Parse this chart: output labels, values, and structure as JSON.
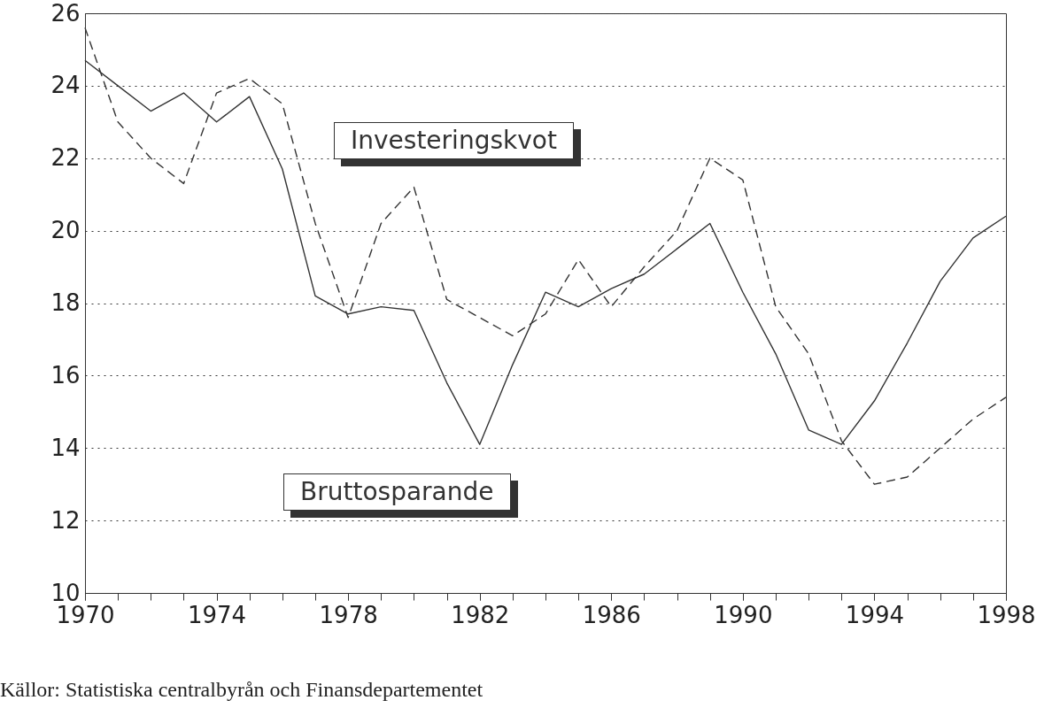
{
  "chart_data": {
    "type": "line",
    "x": [
      1970,
      1971,
      1972,
      1973,
      1974,
      1975,
      1976,
      1977,
      1978,
      1979,
      1980,
      1981,
      1982,
      1983,
      1984,
      1985,
      1986,
      1987,
      1988,
      1989,
      1990,
      1991,
      1992,
      1993,
      1994,
      1995,
      1996,
      1997,
      1998
    ],
    "series": [
      {
        "name": "Bruttosparande",
        "color": "#333333",
        "line_style": "solid",
        "values": [
          24.7,
          24.0,
          23.3,
          23.8,
          23.0,
          23.7,
          21.7,
          18.2,
          17.7,
          17.9,
          17.8,
          15.8,
          14.1,
          16.3,
          18.3,
          17.9,
          18.4,
          18.8,
          19.5,
          20.2,
          18.3,
          16.6,
          14.5,
          14.1,
          15.3,
          16.9,
          18.6,
          19.8,
          20.4
        ]
      },
      {
        "name": "Investeringskvot",
        "color": "#333333",
        "line_style": "dashed",
        "values": [
          25.6,
          23.0,
          22.0,
          21.3,
          23.8,
          24.2,
          23.5,
          20.2,
          17.6,
          20.2,
          21.2,
          18.1,
          17.6,
          17.1,
          17.7,
          19.2,
          17.9,
          19.0,
          20.0,
          22.0,
          21.4,
          17.9,
          16.6,
          14.2,
          13.0,
          13.2,
          14.0,
          14.8,
          15.4
        ]
      }
    ],
    "xlim": [
      1970,
      1998
    ],
    "xticks": [
      1970,
      {
        "value": 1971,
        "label": null
      },
      {
        "value": 1972,
        "label": null
      },
      {
        "value": 1973,
        "label": null
      },
      1974,
      {
        "value": 1975,
        "label": null
      },
      {
        "value": 1976,
        "label": null
      },
      {
        "value": 1977,
        "label": null
      },
      1978,
      {
        "value": 1979,
        "label": null
      },
      {
        "value": 1980,
        "label": null
      },
      {
        "value": 1981,
        "label": null
      },
      1982,
      {
        "value": 1983,
        "label": null
      },
      {
        "value": 1984,
        "label": null
      },
      {
        "value": 1985,
        "label": null
      },
      1986,
      {
        "value": 1987,
        "label": null
      },
      {
        "value": 1988,
        "label": null
      },
      {
        "value": 1989,
        "label": null
      },
      1990,
      {
        "value": 1991,
        "label": null
      },
      {
        "value": 1992,
        "label": null
      },
      {
        "value": 1993,
        "label": null
      },
      1994,
      {
        "value": 1995,
        "label": null
      },
      {
        "value": 1996,
        "label": null
      },
      {
        "value": 1997,
        "label": null
      },
      1998
    ],
    "ylim": [
      10,
      26
    ],
    "yticks": [
      10,
      12,
      14,
      16,
      18,
      20,
      22,
      24,
      26
    ],
    "grid": "y",
    "annotations": [
      "Källor: Statistiska centralbyrån och Finansdepartementet"
    ]
  }
}
